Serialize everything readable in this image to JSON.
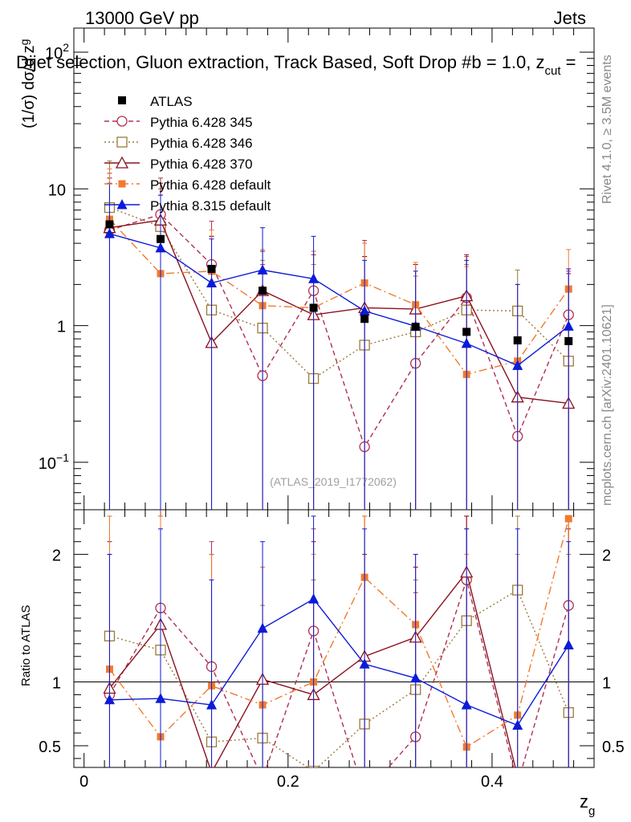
{
  "header": {
    "left": "13000 GeV pp",
    "right": "Jets",
    "title": "Dijet selection, Gluon extraction, Track Based, Soft Drop #b = 1.0, z",
    "title_sub": "cut",
    "title_tail": " ="
  },
  "side": {
    "rivet": "Rivet 4.1.0, ≥ 3.5M events",
    "mcplots": "mcplots.cern.ch [arXiv:2401.10621]"
  },
  "watermark": "(ATLAS_2019_I1772062)",
  "axes": {
    "ylabel_main": "(1/σ) dσ/d z",
    "ylabel_main_sub": "g",
    "ylabel_ratio": "Ratio to ATLAS",
    "xlabel": "z",
    "xlabel_sub": "g"
  },
  "chart_data": {
    "type": "line",
    "x": [
      0.025,
      0.075,
      0.125,
      0.175,
      0.225,
      0.275,
      0.325,
      0.375,
      0.425,
      0.475
    ],
    "xlim": [
      -0.01,
      0.5
    ],
    "xticks": [
      "0",
      "0.2",
      "0.4"
    ],
    "xtick_values": [
      0,
      0.2,
      0.4
    ],
    "main": {
      "yscale": "log",
      "ylim": [
        0.045,
        150
      ],
      "yticks": [
        {
          "v": 0.1,
          "base": "10",
          "exp": "−1"
        },
        {
          "v": 1,
          "base": "1",
          "exp": ""
        },
        {
          "v": 10,
          "base": "10",
          "exp": ""
        },
        {
          "v": 100,
          "base": "10",
          "exp": "2"
        }
      ]
    },
    "ratio": {
      "ylim": [
        0.33,
        2.35
      ],
      "yticks": [
        "0.5",
        "1",
        "2"
      ],
      "ytick_values": [
        0.5,
        1,
        2
      ]
    },
    "data": {
      "name": "ATLAS",
      "values": [
        5.5,
        4.3,
        2.6,
        1.8,
        1.35,
        1.12,
        0.98,
        0.9,
        0.78,
        0.77
      ]
    },
    "series": [
      {
        "name": "Pythia 6.428 345",
        "color": "#b03050",
        "dash": "6,4",
        "marker": "circle-open",
        "values": [
          5.0,
          6.5,
          2.8,
          0.43,
          1.8,
          0.13,
          0.53,
          1.6,
          0.155,
          1.2
        ],
        "ratio": [
          0.9,
          1.58,
          1.12,
          0.24,
          1.4,
          0.12,
          0.57,
          1.8,
          0.2,
          1.6
        ],
        "err_main": [
          13,
          12,
          5.8,
          2.8,
          3.5,
          4.2,
          2.8,
          3.2,
          0,
          2.5
        ],
        "err_ratio_hi": [
          2.0,
          2.6,
          2.1,
          1.4,
          2.2,
          2.3,
          1.7,
          2.3,
          0,
          2.3
        ]
      },
      {
        "name": "Pythia 6.428 346",
        "color": "#9a7a3a",
        "dash": "2,3",
        "marker": "square-open",
        "values": [
          7.3,
          5.3,
          1.3,
          0.96,
          0.41,
          0.72,
          0.9,
          1.3,
          1.28,
          0.55
        ],
        "ratio": [
          1.36,
          1.25,
          0.53,
          0.56,
          0.3,
          0.67,
          0.94,
          1.48,
          1.72,
          0.76
        ],
        "err_main": [
          16,
          10,
          4.5,
          3.0,
          2.8,
          3.2,
          2.3,
          2.8,
          2.55,
          1.8
        ],
        "err_ratio_hi": [
          2.3,
          2.3,
          2.0,
          1.6,
          1.8,
          2.3,
          1.8,
          2.2,
          2.3,
          2.0
        ]
      },
      {
        "name": "Pythia 6.428 370",
        "color": "#8b1020",
        "dash": "",
        "marker": "triangle-open",
        "values": [
          5.2,
          5.9,
          0.75,
          1.8,
          1.2,
          1.35,
          1.32,
          1.65,
          0.3,
          0.27
        ],
        "ratio": [
          0.95,
          1.45,
          0.29,
          1.02,
          0.9,
          1.2,
          1.35,
          1.86,
          0.26,
          0.22
        ],
        "err_main": [
          12,
          11,
          4.5,
          3.5,
          3.3,
          3.2,
          2.8,
          3.3,
          0,
          2.4
        ],
        "err_ratio_hi": [
          2.1,
          2.3,
          2.0,
          1.9,
          2.1,
          2.0,
          1.9,
          2.3,
          0,
          2.2
        ]
      },
      {
        "name": "Pythia 6.428 default",
        "color": "#f07a30",
        "dash": "10,4,2,4",
        "marker": "square-filled",
        "values": [
          6.0,
          2.4,
          2.5,
          1.4,
          1.35,
          2.05,
          1.42,
          0.44,
          0.55,
          1.85
        ],
        "ratio": [
          1.1,
          0.57,
          0.97,
          0.82,
          1.0,
          1.82,
          1.45,
          0.49,
          0.74,
          2.28
        ],
        "err_main": [
          14,
          9,
          5.0,
          3.6,
          3.5,
          4.0,
          2.9,
          2.7,
          2.0,
          3.6
        ],
        "err_ratio_hi": [
          2.3,
          2.3,
          2.0,
          1.9,
          2.0,
          2.3,
          2.0,
          2.0,
          2.0,
          2.3
        ]
      },
      {
        "name": "Pythia 8.315 default",
        "color": "#0b1bd8",
        "dash": "",
        "marker": "triangle-filled",
        "values": [
          4.7,
          3.7,
          2.05,
          2.55,
          2.2,
          1.28,
          0.99,
          0.74,
          0.51,
          0.99
        ],
        "ratio": [
          0.86,
          0.87,
          0.82,
          1.42,
          1.65,
          1.14,
          1.03,
          0.82,
          0.66,
          1.29
        ],
        "err_main": [
          11,
          9,
          4.3,
          5.2,
          4.5,
          3.0,
          2.5,
          3.0,
          2.0,
          2.6
        ],
        "err_ratio_hi": [
          2.0,
          2.2,
          1.8,
          2.1,
          2.3,
          2.2,
          2.0,
          2.2,
          2.2,
          2.1
        ]
      }
    ]
  }
}
